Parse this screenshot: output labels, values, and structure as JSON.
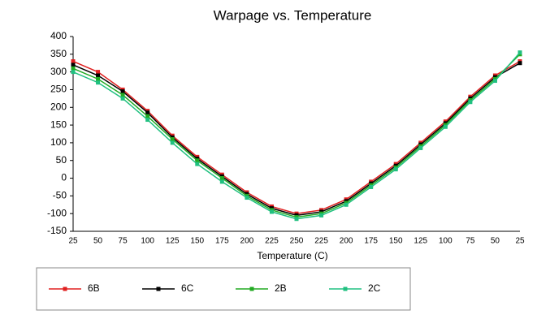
{
  "chart_data": {
    "type": "line",
    "title": "Warpage vs. Temperature",
    "x_label": "Temperature (C)",
    "categories": [
      "25",
      "50",
      "75",
      "100",
      "125",
      "150",
      "175",
      "200",
      "225",
      "250",
      "225",
      "200",
      "175",
      "150",
      "125",
      "100",
      "75",
      "50",
      "25"
    ],
    "series": [
      {
        "name": "6B",
        "color": "#e02020",
        "values": [
          330,
          300,
          250,
          190,
          120,
          60,
          10,
          -40,
          -80,
          -100,
          -90,
          -60,
          -10,
          40,
          100,
          160,
          230,
          290,
          330
        ]
      },
      {
        "name": "6C",
        "color": "#000000",
        "values": [
          320,
          290,
          245,
          185,
          115,
          55,
          5,
          -45,
          -85,
          -105,
          -95,
          -65,
          -15,
          35,
          95,
          155,
          225,
          285,
          325
        ]
      },
      {
        "name": "2B",
        "color": "#22aa22",
        "values": [
          310,
          280,
          235,
          175,
          110,
          50,
          0,
          -50,
          -90,
          -110,
          -100,
          -70,
          -20,
          30,
          90,
          150,
          220,
          280,
          350
        ]
      },
      {
        "name": "2C",
        "color": "#20c080",
        "values": [
          300,
          270,
          225,
          165,
          100,
          40,
          -10,
          -55,
          -95,
          -115,
          -105,
          -75,
          -25,
          25,
          85,
          145,
          215,
          275,
          355
        ]
      }
    ],
    "ylim": [
      -150,
      400
    ],
    "yticks": [
      -150,
      -100,
      -50,
      0,
      50,
      100,
      150,
      200,
      250,
      300,
      350,
      400
    ],
    "grid": false
  }
}
